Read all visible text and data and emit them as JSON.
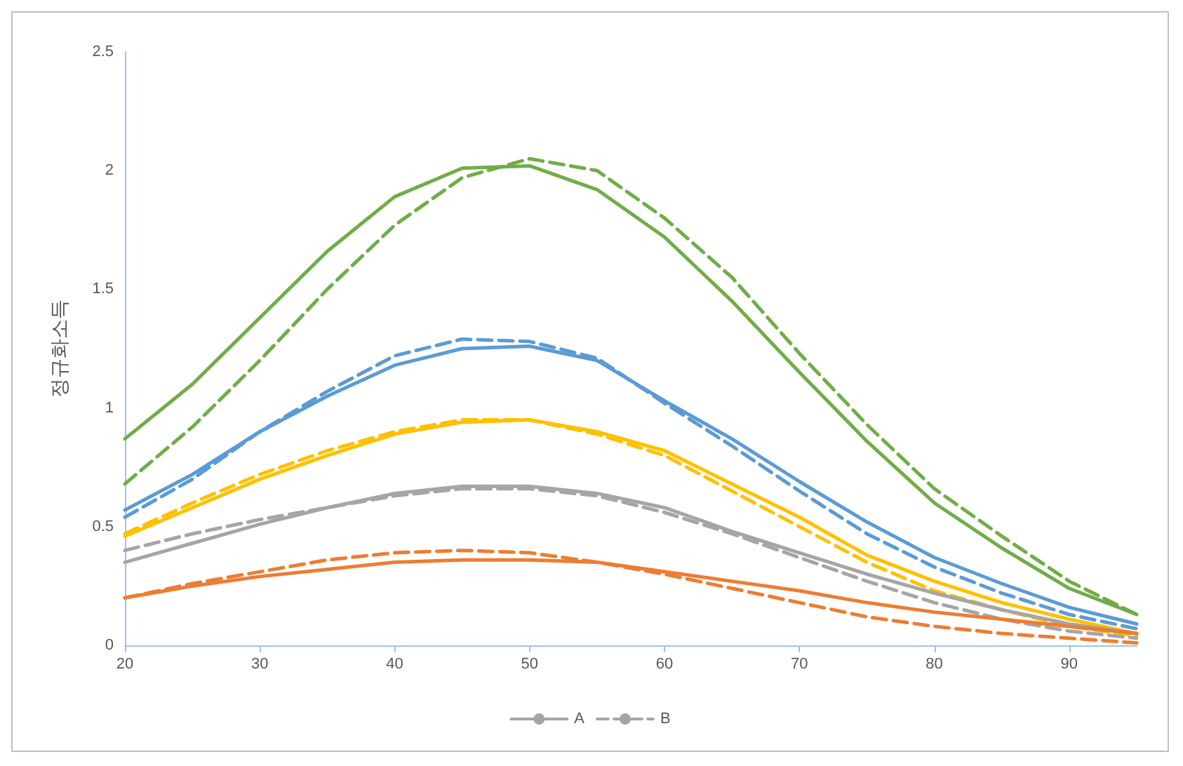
{
  "chart_data": {
    "type": "line",
    "ylabel": "정규화소득",
    "x": [
      20,
      25,
      30,
      35,
      40,
      45,
      50,
      55,
      60,
      65,
      70,
      75,
      80,
      85,
      90,
      95
    ],
    "series": [
      {
        "color": "#70ad47",
        "line_style": "solid",
        "values": [
          0.87,
          1.1,
          1.38,
          1.66,
          1.89,
          2.01,
          2.02,
          1.92,
          1.72,
          1.45,
          1.15,
          0.86,
          0.6,
          0.41,
          0.24,
          0.13
        ]
      },
      {
        "color": "#70ad47",
        "line_style": "dashed",
        "values": [
          0.68,
          0.92,
          1.2,
          1.5,
          1.77,
          1.97,
          2.05,
          2.0,
          1.8,
          1.55,
          1.23,
          0.93,
          0.66,
          0.46,
          0.27,
          0.13
        ]
      },
      {
        "color": "#5b9bd5",
        "line_style": "solid",
        "values": [
          0.57,
          0.72,
          0.9,
          1.05,
          1.18,
          1.25,
          1.26,
          1.2,
          1.03,
          0.87,
          0.69,
          0.52,
          0.37,
          0.26,
          0.16,
          0.09
        ]
      },
      {
        "color": "#5b9bd5",
        "line_style": "dashed",
        "values": [
          0.54,
          0.7,
          0.9,
          1.07,
          1.22,
          1.29,
          1.28,
          1.21,
          1.02,
          0.84,
          0.65,
          0.47,
          0.33,
          0.22,
          0.13,
          0.07
        ]
      },
      {
        "color": "#ffc000",
        "line_style": "solid",
        "values": [
          0.46,
          0.58,
          0.7,
          0.8,
          0.89,
          0.94,
          0.95,
          0.9,
          0.82,
          0.68,
          0.54,
          0.38,
          0.27,
          0.18,
          0.11,
          0.05
        ]
      },
      {
        "color": "#ffc000",
        "line_style": "dashed",
        "values": [
          0.47,
          0.6,
          0.72,
          0.82,
          0.9,
          0.95,
          0.95,
          0.89,
          0.8,
          0.65,
          0.5,
          0.35,
          0.23,
          0.15,
          0.08,
          0.04
        ]
      },
      {
        "name": "A",
        "color": "#a5a5a5",
        "line_style": "solid",
        "values": [
          0.35,
          0.43,
          0.51,
          0.58,
          0.64,
          0.67,
          0.67,
          0.64,
          0.58,
          0.48,
          0.39,
          0.3,
          0.22,
          0.15,
          0.09,
          0.05
        ]
      },
      {
        "name": "B",
        "color": "#a5a5a5",
        "line_style": "dashed",
        "values": [
          0.4,
          0.47,
          0.53,
          0.58,
          0.63,
          0.66,
          0.66,
          0.63,
          0.56,
          0.47,
          0.37,
          0.27,
          0.18,
          0.11,
          0.06,
          0.03
        ]
      },
      {
        "color": "#ed7d31",
        "line_style": "solid",
        "values": [
          0.2,
          0.25,
          0.29,
          0.32,
          0.35,
          0.36,
          0.36,
          0.35,
          0.31,
          0.27,
          0.23,
          0.18,
          0.14,
          0.11,
          0.08,
          0.05
        ]
      },
      {
        "color": "#ed7d31",
        "line_style": "dashed",
        "values": [
          0.2,
          0.26,
          0.31,
          0.36,
          0.39,
          0.4,
          0.39,
          0.35,
          0.3,
          0.24,
          0.18,
          0.12,
          0.08,
          0.05,
          0.03,
          0.01
        ]
      }
    ],
    "xlim": [
      20,
      95
    ],
    "xticks": [
      20,
      30,
      40,
      50,
      60,
      70,
      80,
      90
    ],
    "ylim": [
      0,
      2.5
    ],
    "yticks": [
      0,
      0.5,
      1,
      1.5,
      2,
      2.5
    ],
    "grid": false,
    "legend": "bottom",
    "marker": "none"
  }
}
